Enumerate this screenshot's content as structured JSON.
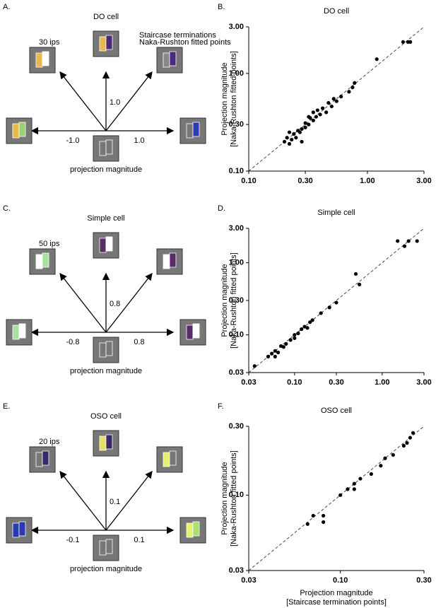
{
  "chart_data": [
    {
      "type": "scatter",
      "panel": "B.",
      "title": "DO cell",
      "log": true,
      "color": "#000000",
      "ylabel": [
        "Projection magnitude",
        "[Naka-Rushton fitted points]"
      ],
      "x": [
        0.2,
        0.21,
        0.22,
        0.23,
        0.24,
        0.25,
        0.26,
        0.27,
        0.28,
        0.3,
        0.3,
        0.32,
        0.33,
        0.35,
        0.35,
        0.37,
        0.38,
        0.4,
        0.42,
        0.45,
        0.47,
        0.5,
        0.52,
        0.55,
        0.6,
        0.7,
        0.75,
        0.78,
        1.2,
        2.0,
        2.2,
        2.3,
        0.28,
        0.32,
        0.22
      ],
      "values": [
        0.2,
        0.22,
        0.19,
        0.21,
        0.24,
        0.22,
        0.26,
        0.25,
        0.27,
        0.28,
        0.31,
        0.3,
        0.35,
        0.33,
        0.4,
        0.36,
        0.42,
        0.38,
        0.44,
        0.4,
        0.5,
        0.46,
        0.55,
        0.52,
        0.58,
        0.65,
        0.72,
        0.8,
        1.4,
        2.1,
        2.1,
        2.1,
        0.2,
        0.36,
        0.25
      ],
      "xlim": [
        0.1,
        3
      ],
      "ylim": [
        0.1,
        3
      ],
      "xticks": [
        {
          "value": 0.1,
          "label": "0.10"
        },
        {
          "value": 0.3,
          "label": "0.30"
        },
        {
          "value": 1,
          "label": "1.00"
        },
        {
          "value": 3,
          "label": "3.00"
        }
      ],
      "yticks": [
        {
          "value": 0.1,
          "label": "0.10"
        },
        {
          "value": 0.3,
          "label": "0.30"
        },
        {
          "value": 1,
          "label": "1.00"
        },
        {
          "value": 3,
          "label": "3.00"
        }
      ]
    },
    {
      "type": "scatter",
      "panel": "D.",
      "title": "Simple cell",
      "log": true,
      "color": "#000000",
      "ylabel": [
        "Projection magnitude",
        "[Naka-Rushton fitted points]"
      ],
      "x": [
        0.035,
        0.05,
        0.055,
        0.06,
        0.06,
        0.065,
        0.07,
        0.075,
        0.08,
        0.09,
        0.1,
        0.1,
        0.11,
        0.12,
        0.13,
        0.14,
        0.15,
        0.16,
        0.2,
        0.25,
        0.3,
        0.5,
        0.55,
        1.5,
        1.8,
        2.0,
        2.5
      ],
      "values": [
        0.037,
        0.05,
        0.055,
        0.05,
        0.06,
        0.057,
        0.07,
        0.068,
        0.075,
        0.085,
        0.09,
        0.1,
        0.105,
        0.12,
        0.13,
        0.125,
        0.15,
        0.16,
        0.2,
        0.24,
        0.28,
        0.7,
        0.5,
        2.0,
        1.7,
        2.0,
        2.0
      ],
      "xlim": [
        0.03,
        3
      ],
      "ylim": [
        0.03,
        3
      ],
      "xticks": [
        0.03,
        {
          "value": 0.1,
          "label": "0.10"
        },
        {
          "value": 0.3,
          "label": "0.30"
        },
        {
          "value": 1,
          "label": "1.00"
        },
        {
          "value": 3,
          "label": "3.00"
        }
      ],
      "yticks": [
        0.03,
        {
          "value": 0.1,
          "label": "0.10"
        },
        {
          "value": 0.3,
          "label": "0.30"
        },
        {
          "value": 1,
          "label": "1.00"
        },
        {
          "value": 3,
          "label": "3.00"
        }
      ]
    },
    {
      "type": "scatter",
      "panel": "F.",
      "title": "OSO cell",
      "log": true,
      "color": "#000000",
      "ylabel": [
        "Projection magnitude",
        "[Naka-Rushton fitted points]"
      ],
      "xlabel": [
        "Projection magnitude",
        "[Staircase termination points]"
      ],
      "x": [
        0.065,
        0.07,
        0.08,
        0.08,
        0.1,
        0.11,
        0.12,
        0.12,
        0.13,
        0.15,
        0.17,
        0.18,
        0.2,
        0.23,
        0.24,
        0.25,
        0.26
      ],
      "values": [
        0.063,
        0.072,
        0.065,
        0.072,
        0.1,
        0.11,
        0.11,
        0.12,
        0.13,
        0.14,
        0.16,
        0.18,
        0.19,
        0.22,
        0.23,
        0.25,
        0.27
      ],
      "xlim": [
        0.03,
        0.3
      ],
      "ylim": [
        0.03,
        0.3
      ],
      "xticks": [
        0.03,
        {
          "value": 0.1,
          "label": "0.10"
        },
        {
          "value": 0.3,
          "label": "0.30"
        }
      ],
      "yticks": [
        0.03,
        {
          "value": 0.1,
          "label": "0.10"
        },
        {
          "value": 0.3,
          "label": "0.30"
        }
      ]
    }
  ],
  "diagrams": [
    {
      "panel": "A.",
      "title": "DO cell",
      "speed": "30 ips",
      "ticks": [
        "-1.0",
        "1.0",
        "1.0"
      ],
      "xlabel": "projection magnitude",
      "legend": [
        {
          "name": "Staircase terminations",
          "color": "#000000"
        },
        {
          "name": "Naka-Rushton fitted points",
          "color": "#e06060"
        }
      ],
      "icons": [
        [
          "#e8b84a",
          "#ffffff"
        ],
        [
          "#e8b84a",
          "#4a2a7a"
        ],
        [
          "#888888",
          "#4a2a7a"
        ],
        [
          "#e8b84a",
          "#9ad070"
        ],
        [
          "#777777",
          "#2a3ab0"
        ],
        [
          "#777777",
          "#777777"
        ]
      ]
    },
    {
      "panel": "C.",
      "title": "Simple cell",
      "speed": "50 ips",
      "ticks": [
        "-0.8",
        "0.8",
        "0.8"
      ],
      "xlabel": "projection magnitude",
      "icons": [
        [
          "#ffffff",
          "#a8e0a0"
        ],
        [
          "#5a2a6a",
          "#ffffff"
        ],
        [
          "#ffffff",
          "#5a2a6a"
        ],
        [
          "#a8e0a0",
          "#ffffff"
        ],
        [
          "#5a2a6a",
          "#ffffff"
        ],
        [
          "#777777",
          "#777777"
        ]
      ]
    },
    {
      "panel": "E.",
      "title": "OSO cell",
      "speed": "20 ips",
      "ticks": [
        "-0.1",
        "0.1",
        "0.1"
      ],
      "xlabel": "projection magnitude",
      "icons": [
        [
          "#777777",
          "#3a2a6a"
        ],
        [
          "#e8e060",
          "#3a2a6a"
        ],
        [
          "#e8f070",
          "#777777"
        ],
        [
          "#2a3ab0",
          "#2a3ab0"
        ],
        [
          "#e8f070",
          "#a8e070"
        ],
        [
          "#777777",
          "#777777"
        ]
      ]
    }
  ]
}
